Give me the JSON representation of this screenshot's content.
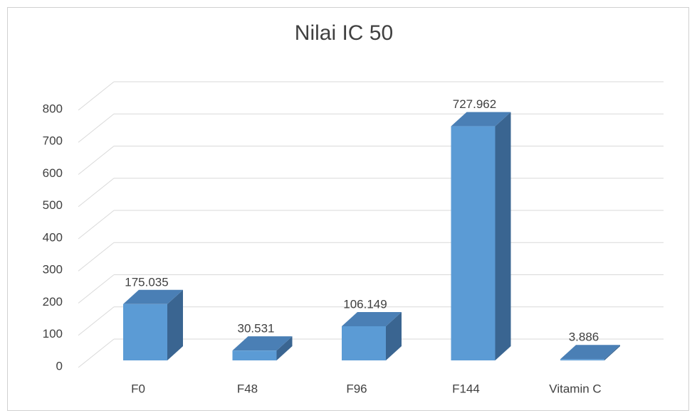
{
  "chart_data": {
    "type": "bar3d",
    "title": "Nilai IC 50",
    "categories": [
      "F0",
      "F48",
      "F96",
      "F144",
      "Vitamin C"
    ],
    "values": [
      175.035,
      30.531,
      106.149,
      727.962,
      3.886
    ],
    "color": "#5b9bd5",
    "ylim": [
      0,
      800
    ],
    "yticks": [
      0,
      100,
      200,
      300,
      400,
      500,
      600,
      700,
      800
    ],
    "grid": true
  }
}
